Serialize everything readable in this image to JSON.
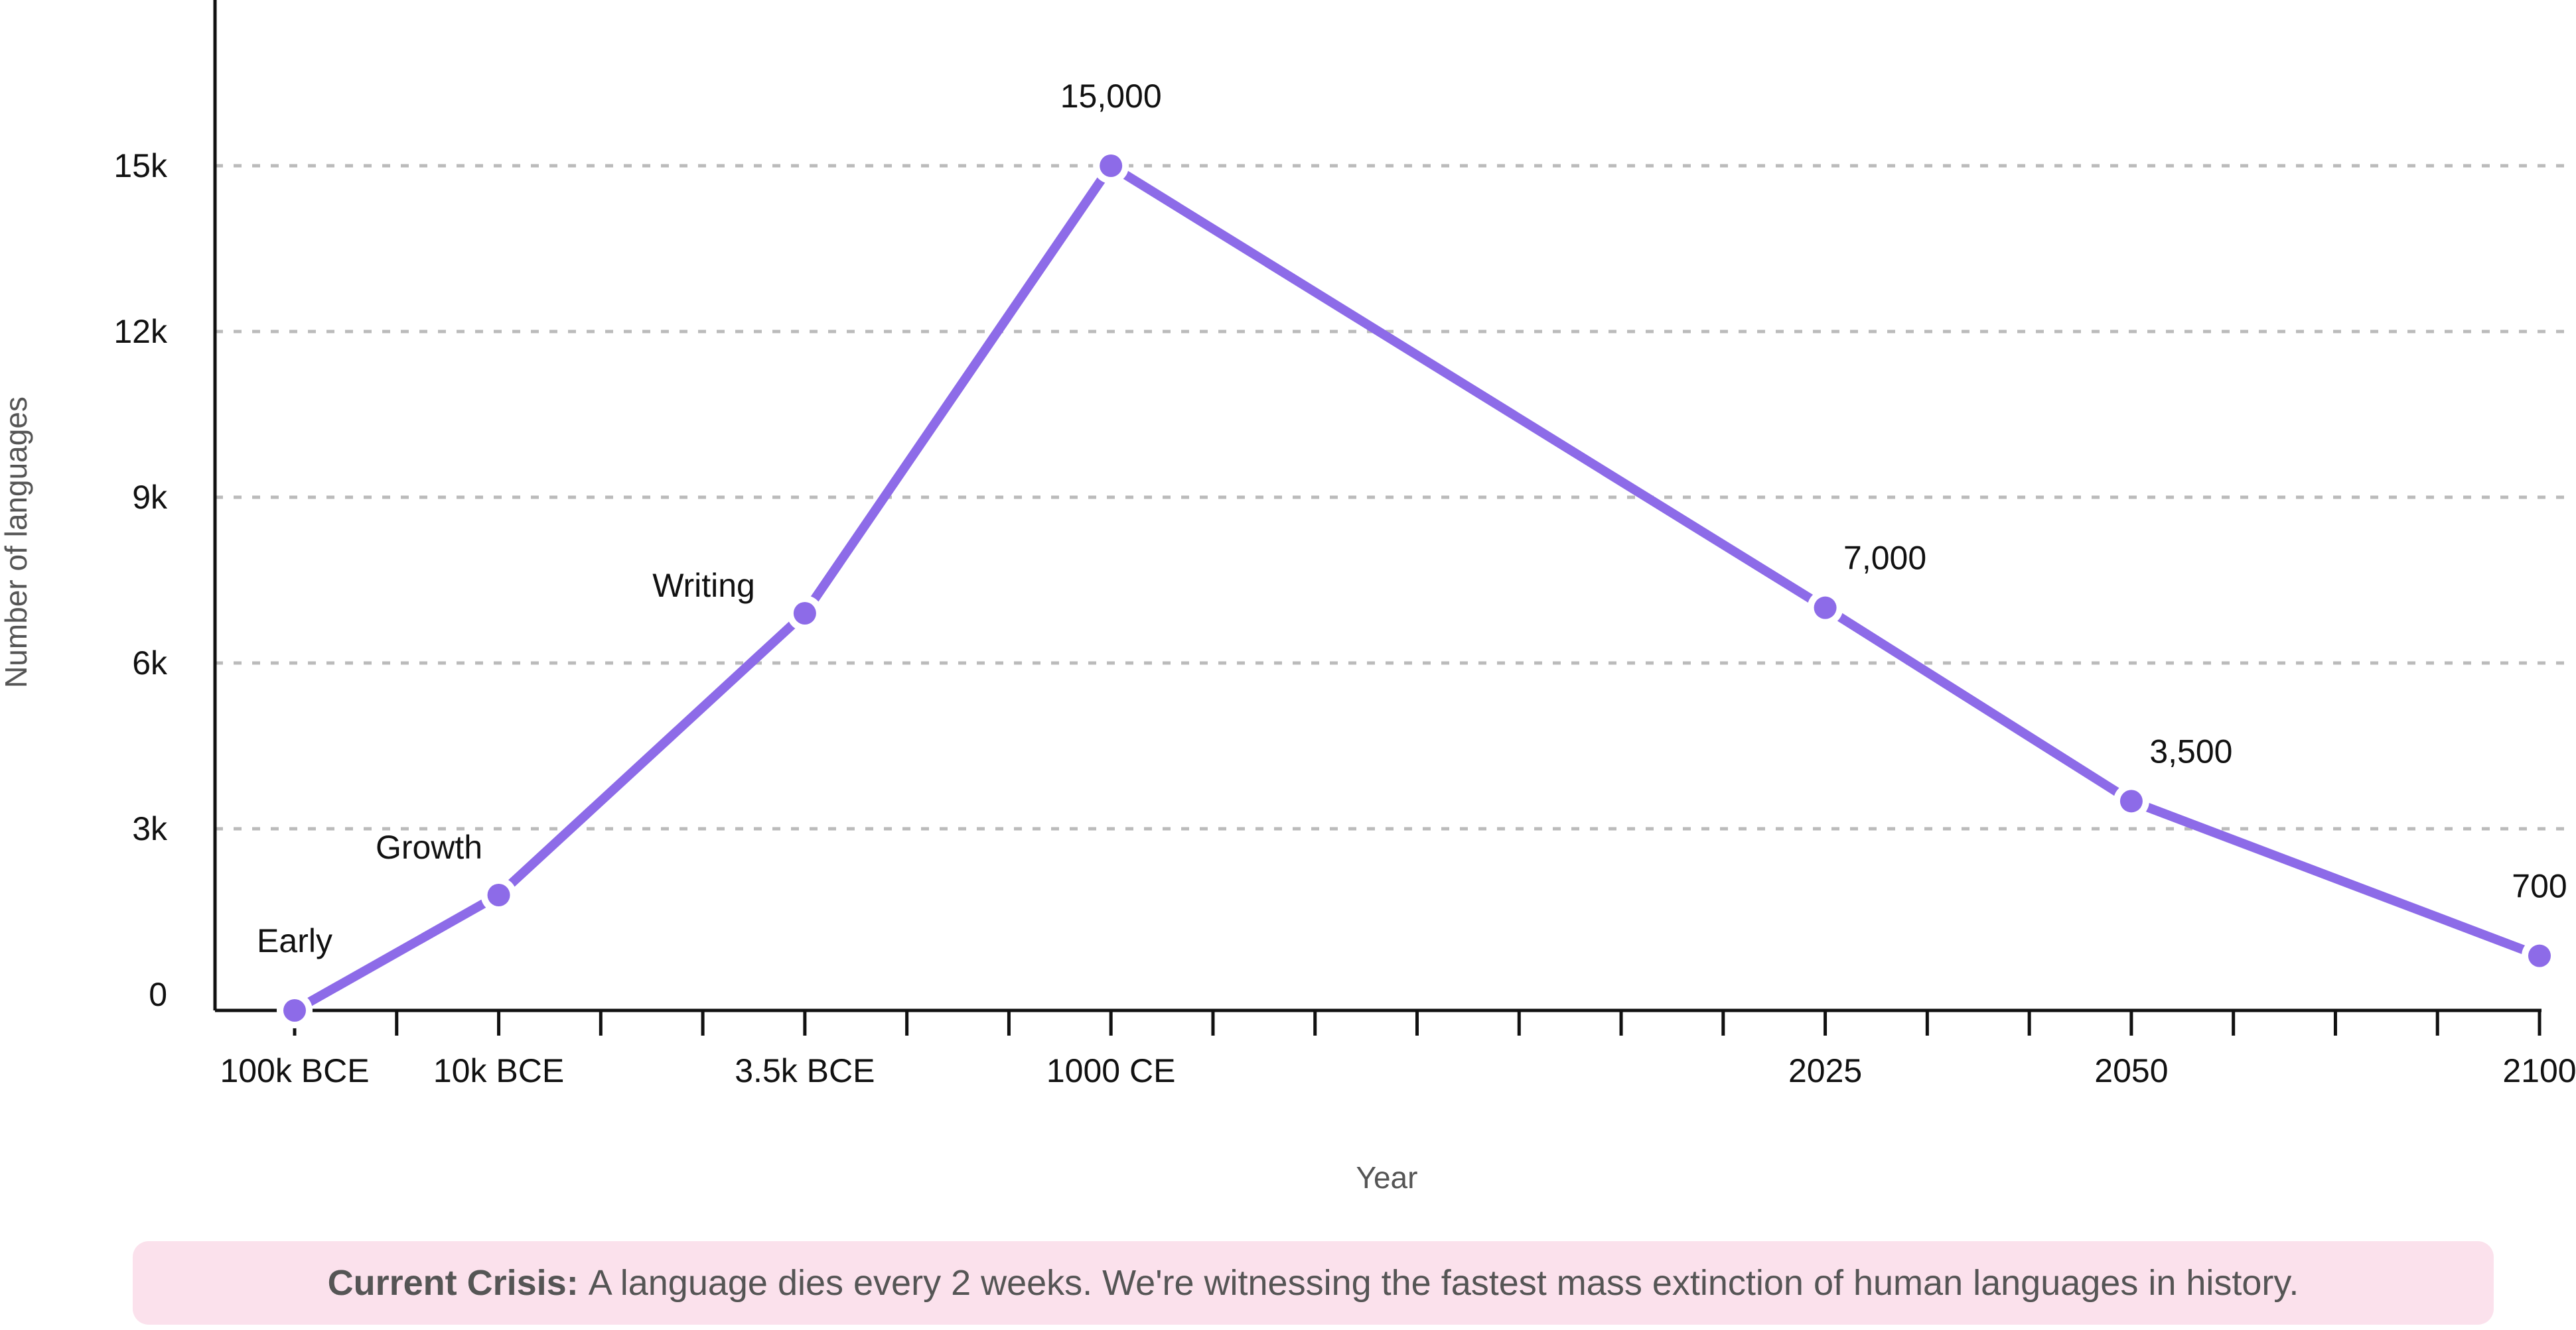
{
  "chart_data": {
    "type": "line",
    "title": "",
    "xlabel": "Year",
    "ylabel": "Number of languages",
    "ylim": [
      0,
      15000
    ],
    "grid": "horizontal-dotted",
    "legend": "none",
    "x": [
      "100k BCE",
      "10k BCE",
      "3.5k BCE",
      "1000 CE",
      "2025",
      "2050",
      "2100"
    ],
    "values": [
      0,
      1800,
      6900,
      15000,
      7000,
      3500,
      700
    ],
    "point_labels": [
      "Early",
      "Growth",
      "Writing",
      "15,000",
      "7,000",
      "3,500",
      "700"
    ],
    "y_ticks": [
      {
        "label": "0",
        "value": 0
      },
      {
        "label": "3k",
        "value": 3000
      },
      {
        "label": "6k",
        "value": 6000
      },
      {
        "label": "9k",
        "value": 9000
      },
      {
        "label": "12k",
        "value": 12000
      },
      {
        "label": "15k",
        "value": 15000
      }
    ],
    "x_tick_count": 23,
    "x_labeled_ticks": [
      {
        "index": 0,
        "label": "100k BCE"
      },
      {
        "index": 2,
        "label": "10k BCE"
      },
      {
        "index": 5,
        "label": "3.5k BCE"
      },
      {
        "index": 8,
        "label": "1000 CE"
      },
      {
        "index": 15,
        "label": "2025"
      },
      {
        "index": 18,
        "label": "2050"
      },
      {
        "index": 22,
        "label": "2100"
      }
    ],
    "points": [
      {
        "x": "100k BCE",
        "tick_index": 0,
        "value": 0,
        "label": "Early",
        "label_pos": "above",
        "on_axis": true
      },
      {
        "x": "10k BCE",
        "tick_index": 2,
        "value": 1800,
        "label": "Growth",
        "label_pos": "above-left",
        "on_axis": false
      },
      {
        "x": "3.5k BCE",
        "tick_index": 5,
        "value": 6900,
        "label": "Writing",
        "label_pos": "left",
        "on_axis": false
      },
      {
        "x": "1000 CE",
        "tick_index": 8,
        "value": 15000,
        "label": "15,000",
        "label_pos": "above",
        "on_axis": false
      },
      {
        "x": "2025",
        "tick_index": 15,
        "value": 7000,
        "label": "7,000",
        "label_pos": "above-right",
        "on_axis": false
      },
      {
        "x": "2050",
        "tick_index": 18,
        "value": 3500,
        "label": "3,500",
        "label_pos": "above-right",
        "on_axis": false
      },
      {
        "x": "2100",
        "tick_index": 22,
        "value": 700,
        "label": "700",
        "label_pos": "above",
        "on_axis": false
      }
    ]
  },
  "axes": {
    "y_title": "Number of languages",
    "x_title": "Year"
  },
  "note": {
    "bold": "Current Crisis:",
    "rest": " A language dies every 2 weeks. We're witnessing the fastest mass extinction of human languages in history."
  },
  "colors": {
    "accent_purple": "#8D6BE8",
    "gridline_gray": "#BBBBBB",
    "axis_black": "#111111",
    "tick_text": "#111111",
    "muted_text": "#555555",
    "note_background": "#FBE1EC",
    "note_text": "#555555",
    "background": "#FFFFFF"
  }
}
